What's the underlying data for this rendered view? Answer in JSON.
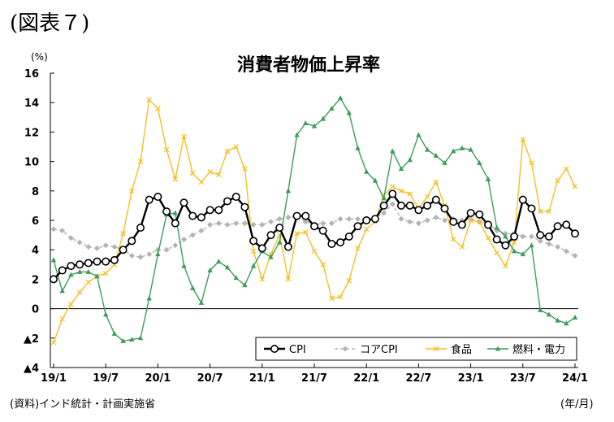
{
  "figure_label": "(図表７)",
  "source_note": "(資料)インド統計・計画実施省",
  "x_unit_note": "(年/月)",
  "chart_data": {
    "type": "line",
    "title": "消費者物価上昇率",
    "ylabel": "(%)",
    "ylim": [
      -4,
      16
    ],
    "ytick_values": [
      -4,
      -2,
      0,
      2,
      4,
      6,
      8,
      10,
      12,
      14,
      16
    ],
    "ytick_labels": [
      "▲4",
      "▲2",
      "0",
      "2",
      "4",
      "6",
      "8",
      "10",
      "12",
      "14",
      "16"
    ],
    "x_tick_labels": [
      "19/1",
      "19/7",
      "20/1",
      "20/7",
      "21/1",
      "21/7",
      "22/1",
      "22/7",
      "23/1",
      "23/7",
      "24/1"
    ],
    "x_tick_positions": [
      0,
      6,
      12,
      18,
      24,
      30,
      36,
      42,
      48,
      54,
      60
    ],
    "x_count": 61,
    "grid": false,
    "legend_position": "bottom-right",
    "series": [
      {
        "name": "CPI",
        "color": "#000000",
        "marker": "circle",
        "values": [
          2.0,
          2.6,
          2.9,
          3.0,
          3.1,
          3.2,
          3.2,
          3.3,
          4.0,
          4.6,
          5.5,
          7.4,
          7.6,
          6.6,
          5.8,
          7.2,
          6.3,
          6.2,
          6.7,
          6.7,
          7.3,
          7.6,
          6.9,
          4.6,
          4.1,
          5.0,
          5.5,
          4.2,
          6.3,
          6.3,
          5.6,
          5.3,
          4.4,
          4.5,
          4.9,
          5.6,
          6.0,
          6.1,
          7.0,
          7.8,
          7.0,
          7.0,
          6.7,
          7.0,
          7.4,
          6.8,
          5.9,
          5.7,
          6.5,
          6.4,
          5.7,
          4.7,
          4.3,
          4.9,
          7.4,
          6.8,
          5.0,
          4.9,
          5.6,
          5.7,
          5.1
        ]
      },
      {
        "name": "コアCPI",
        "color": "#b4b4b4",
        "marker": "diamond",
        "values": [
          5.4,
          5.3,
          4.8,
          4.5,
          4.2,
          4.1,
          4.3,
          4.2,
          4.0,
          3.6,
          3.5,
          3.7,
          4.0,
          4.0,
          4.3,
          4.7,
          5.0,
          5.3,
          5.7,
          5.8,
          5.7,
          5.8,
          5.8,
          5.7,
          5.7,
          5.9,
          6.1,
          6.2,
          6.3,
          5.9,
          5.7,
          5.8,
          5.8,
          6.1,
          6.1,
          6.1,
          6.1,
          6.2,
          6.5,
          7.1,
          6.1,
          5.9,
          5.8,
          6.0,
          6.2,
          6.0,
          6.1,
          6.0,
          6.1,
          5.9,
          5.8,
          5.3,
          5.1,
          5.1,
          4.9,
          4.9,
          4.6,
          4.4,
          4.2,
          3.9,
          3.6
        ]
      },
      {
        "name": "食品",
        "color": "#f5c024",
        "marker": "x",
        "values": [
          -2.3,
          -0.7,
          0.3,
          1.1,
          1.8,
          2.2,
          2.4,
          3.0,
          5.1,
          8.0,
          10.0,
          14.2,
          13.6,
          10.8,
          8.8,
          11.7,
          9.2,
          8.6,
          9.3,
          9.1,
          10.7,
          11.0,
          9.5,
          3.9,
          2.0,
          3.7,
          5.0,
          2.0,
          5.1,
          5.2,
          3.9,
          3.0,
          0.7,
          0.8,
          1.9,
          4.1,
          5.4,
          5.9,
          7.7,
          8.3,
          8.0,
          7.8,
          6.8,
          7.6,
          8.6,
          7.0,
          4.7,
          4.2,
          6.0,
          5.9,
          4.8,
          3.8,
          2.9,
          4.5,
          11.5,
          9.9,
          6.6,
          6.6,
          8.7,
          9.5,
          8.3
        ]
      },
      {
        "name": "燃料・電力",
        "color": "#3c9c5a",
        "marker": "triangle",
        "values": [
          3.3,
          1.2,
          2.3,
          2.5,
          2.5,
          2.2,
          -0.4,
          -1.7,
          -2.2,
          -2.1,
          -2.0,
          0.7,
          3.7,
          6.4,
          6.5,
          2.9,
          1.4,
          0.4,
          2.6,
          3.2,
          2.8,
          2.1,
          1.6,
          2.9,
          3.9,
          3.5,
          4.5,
          8.0,
          11.8,
          12.6,
          12.4,
          12.9,
          13.6,
          14.3,
          13.3,
          10.9,
          9.3,
          8.7,
          7.5,
          10.7,
          9.5,
          10.1,
          11.8,
          10.8,
          10.4,
          9.9,
          10.7,
          10.9,
          10.8,
          9.9,
          8.8,
          5.5,
          4.9,
          3.9,
          3.7,
          4.3,
          -0.1,
          -0.4,
          -0.8,
          -1.0,
          -0.6
        ]
      }
    ]
  }
}
